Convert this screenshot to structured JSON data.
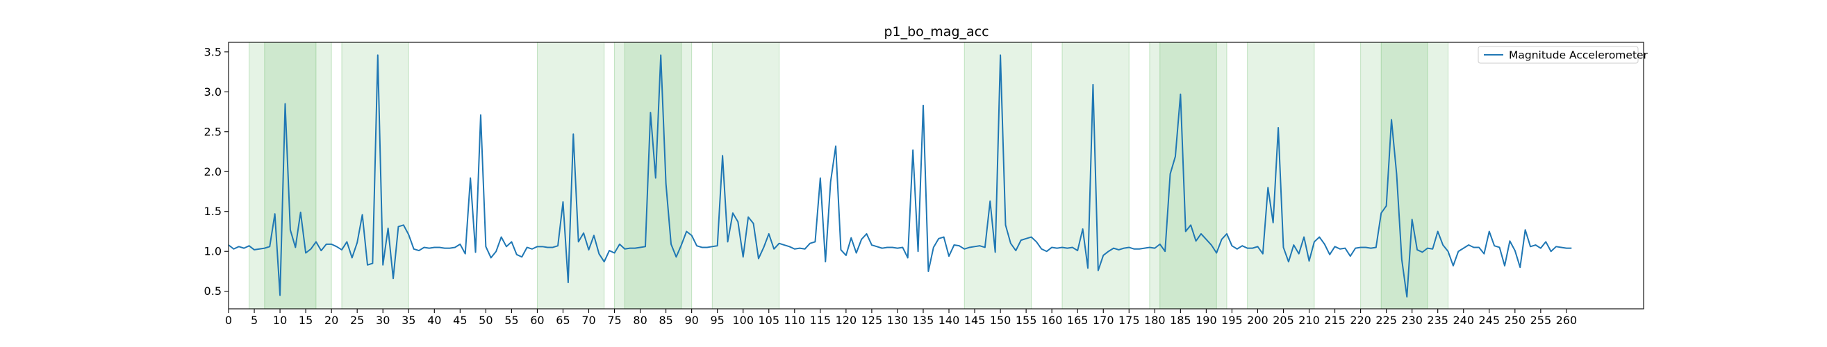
{
  "chart_data": {
    "type": "line",
    "title": "p1_bo_mag_acc",
    "xlabel": "",
    "ylabel": "",
    "xlim": [
      0,
      275
    ],
    "ylim": [
      0.28,
      3.62
    ],
    "xticks": [
      0,
      5,
      10,
      15,
      20,
      25,
      30,
      35,
      40,
      45,
      50,
      55,
      60,
      65,
      70,
      75,
      80,
      85,
      90,
      95,
      100,
      105,
      110,
      115,
      120,
      125,
      130,
      135,
      140,
      145,
      150,
      155,
      160,
      165,
      170,
      175,
      180,
      185,
      190,
      195,
      200,
      205,
      210,
      215,
      220,
      225,
      230,
      235,
      240,
      245,
      250,
      255,
      260
    ],
    "yticks": [
      0.5,
      1.0,
      1.5,
      2.0,
      2.5,
      3.0,
      3.5
    ],
    "ytick_labels": [
      "0.5",
      "1.0",
      "1.5",
      "2.0",
      "2.5",
      "3.0",
      "3.5"
    ],
    "grid": false,
    "legend_position": "top-right",
    "series": [
      {
        "name": "Magnitude Accelerometer",
        "color": "#1f77b4",
        "values": [
          1.08,
          1.03,
          1.06,
          1.04,
          1.07,
          1.02,
          1.03,
          1.04,
          1.06,
          1.47,
          0.45,
          2.85,
          1.27,
          1.05,
          1.49,
          0.98,
          1.03,
          1.12,
          1.01,
          1.09,
          1.09,
          1.06,
          1.02,
          1.12,
          0.92,
          1.11,
          1.46,
          0.83,
          0.85,
          3.46,
          0.83,
          1.29,
          0.66,
          1.31,
          1.33,
          1.21,
          1.03,
          1.01,
          1.05,
          1.04,
          1.05,
          1.05,
          1.04,
          1.04,
          1.05,
          1.09,
          0.97,
          1.92,
          0.99,
          2.71,
          1.06,
          0.92,
          1.0,
          1.18,
          1.06,
          1.12,
          0.96,
          0.93,
          1.05,
          1.03,
          1.06,
          1.06,
          1.05,
          1.05,
          1.07,
          1.62,
          0.61,
          2.47,
          1.12,
          1.23,
          1.02,
          1.2,
          0.97,
          0.87,
          1.01,
          0.98,
          1.09,
          1.03,
          1.04,
          1.04,
          1.05,
          1.06,
          2.74,
          1.92,
          3.46,
          1.85,
          1.09,
          0.93,
          1.08,
          1.25,
          1.2,
          1.07,
          1.05,
          1.05,
          1.06,
          1.07,
          2.2,
          1.12,
          1.48,
          1.37,
          0.93,
          1.43,
          1.35,
          0.91,
          1.05,
          1.22,
          1.03,
          1.1,
          1.08,
          1.06,
          1.03,
          1.04,
          1.03,
          1.1,
          1.12,
          1.92,
          0.87,
          1.87,
          2.32,
          1.02,
          0.95,
          1.17,
          0.98,
          1.15,
          1.22,
          1.08,
          1.06,
          1.04,
          1.05,
          1.05,
          1.04,
          1.05,
          0.92,
          2.27,
          1.0,
          2.83,
          0.75,
          1.05,
          1.16,
          1.18,
          0.94,
          1.08,
          1.07,
          1.03,
          1.05,
          1.06,
          1.07,
          1.05,
          1.63,
          0.99,
          3.46,
          1.33,
          1.1,
          1.01,
          1.14,
          1.16,
          1.18,
          1.12,
          1.03,
          1.0,
          1.05,
          1.04,
          1.05,
          1.04,
          1.05,
          1.01,
          1.28,
          0.79,
          3.09,
          0.76,
          0.95,
          1.0,
          1.04,
          1.02,
          1.04,
          1.05,
          1.03,
          1.03,
          1.04,
          1.05,
          1.04,
          1.09,
          1.0,
          1.97,
          2.19,
          2.97,
          1.25,
          1.33,
          1.13,
          1.22,
          1.15,
          1.08,
          0.98,
          1.15,
          1.22,
          1.07,
          1.03,
          1.07,
          1.04,
          1.04,
          1.06,
          0.97,
          1.8,
          1.36,
          2.55,
          1.05,
          0.87,
          1.08,
          0.97,
          1.18,
          0.88,
          1.12,
          1.18,
          1.09,
          0.96,
          1.06,
          1.03,
          1.04,
          0.94,
          1.04,
          1.05,
          1.05,
          1.04,
          1.05,
          1.48,
          1.57,
          2.65,
          1.97,
          0.9,
          0.43,
          1.4,
          1.02,
          0.99,
          1.04,
          1.03,
          1.25,
          1.08,
          1.0,
          0.82,
          1.0,
          1.04,
          1.08,
          1.05,
          1.05,
          0.97,
          1.25,
          1.07,
          1.05,
          0.82,
          1.13,
          1.01,
          0.8,
          1.27,
          1.06,
          1.08,
          1.04,
          1.12,
          1.0,
          1.06,
          1.05,
          1.04,
          1.04
        ]
      }
    ],
    "shaded_regions": [
      {
        "x0": 4,
        "x1": 20,
        "color": "#2ca02c",
        "opacity": 0.12
      },
      {
        "x0": 7,
        "x1": 17,
        "color": "#2ca02c",
        "opacity": 0.12
      },
      {
        "x0": 22,
        "x1": 35,
        "color": "#2ca02c",
        "opacity": 0.12
      },
      {
        "x0": 60,
        "x1": 73,
        "color": "#2ca02c",
        "opacity": 0.12
      },
      {
        "x0": 75,
        "x1": 90,
        "color": "#2ca02c",
        "opacity": 0.12
      },
      {
        "x0": 77,
        "x1": 88,
        "color": "#2ca02c",
        "opacity": 0.12
      },
      {
        "x0": 94,
        "x1": 107,
        "color": "#2ca02c",
        "opacity": 0.12
      },
      {
        "x0": 143,
        "x1": 156,
        "color": "#2ca02c",
        "opacity": 0.12
      },
      {
        "x0": 162,
        "x1": 175,
        "color": "#2ca02c",
        "opacity": 0.12
      },
      {
        "x0": 179,
        "x1": 194,
        "color": "#2ca02c",
        "opacity": 0.12
      },
      {
        "x0": 181,
        "x1": 192,
        "color": "#2ca02c",
        "opacity": 0.12
      },
      {
        "x0": 198,
        "x1": 211,
        "color": "#2ca02c",
        "opacity": 0.12
      },
      {
        "x0": 220,
        "x1": 237,
        "color": "#2ca02c",
        "opacity": 0.12
      },
      {
        "x0": 224,
        "x1": 233,
        "color": "#2ca02c",
        "opacity": 0.12
      }
    ]
  }
}
